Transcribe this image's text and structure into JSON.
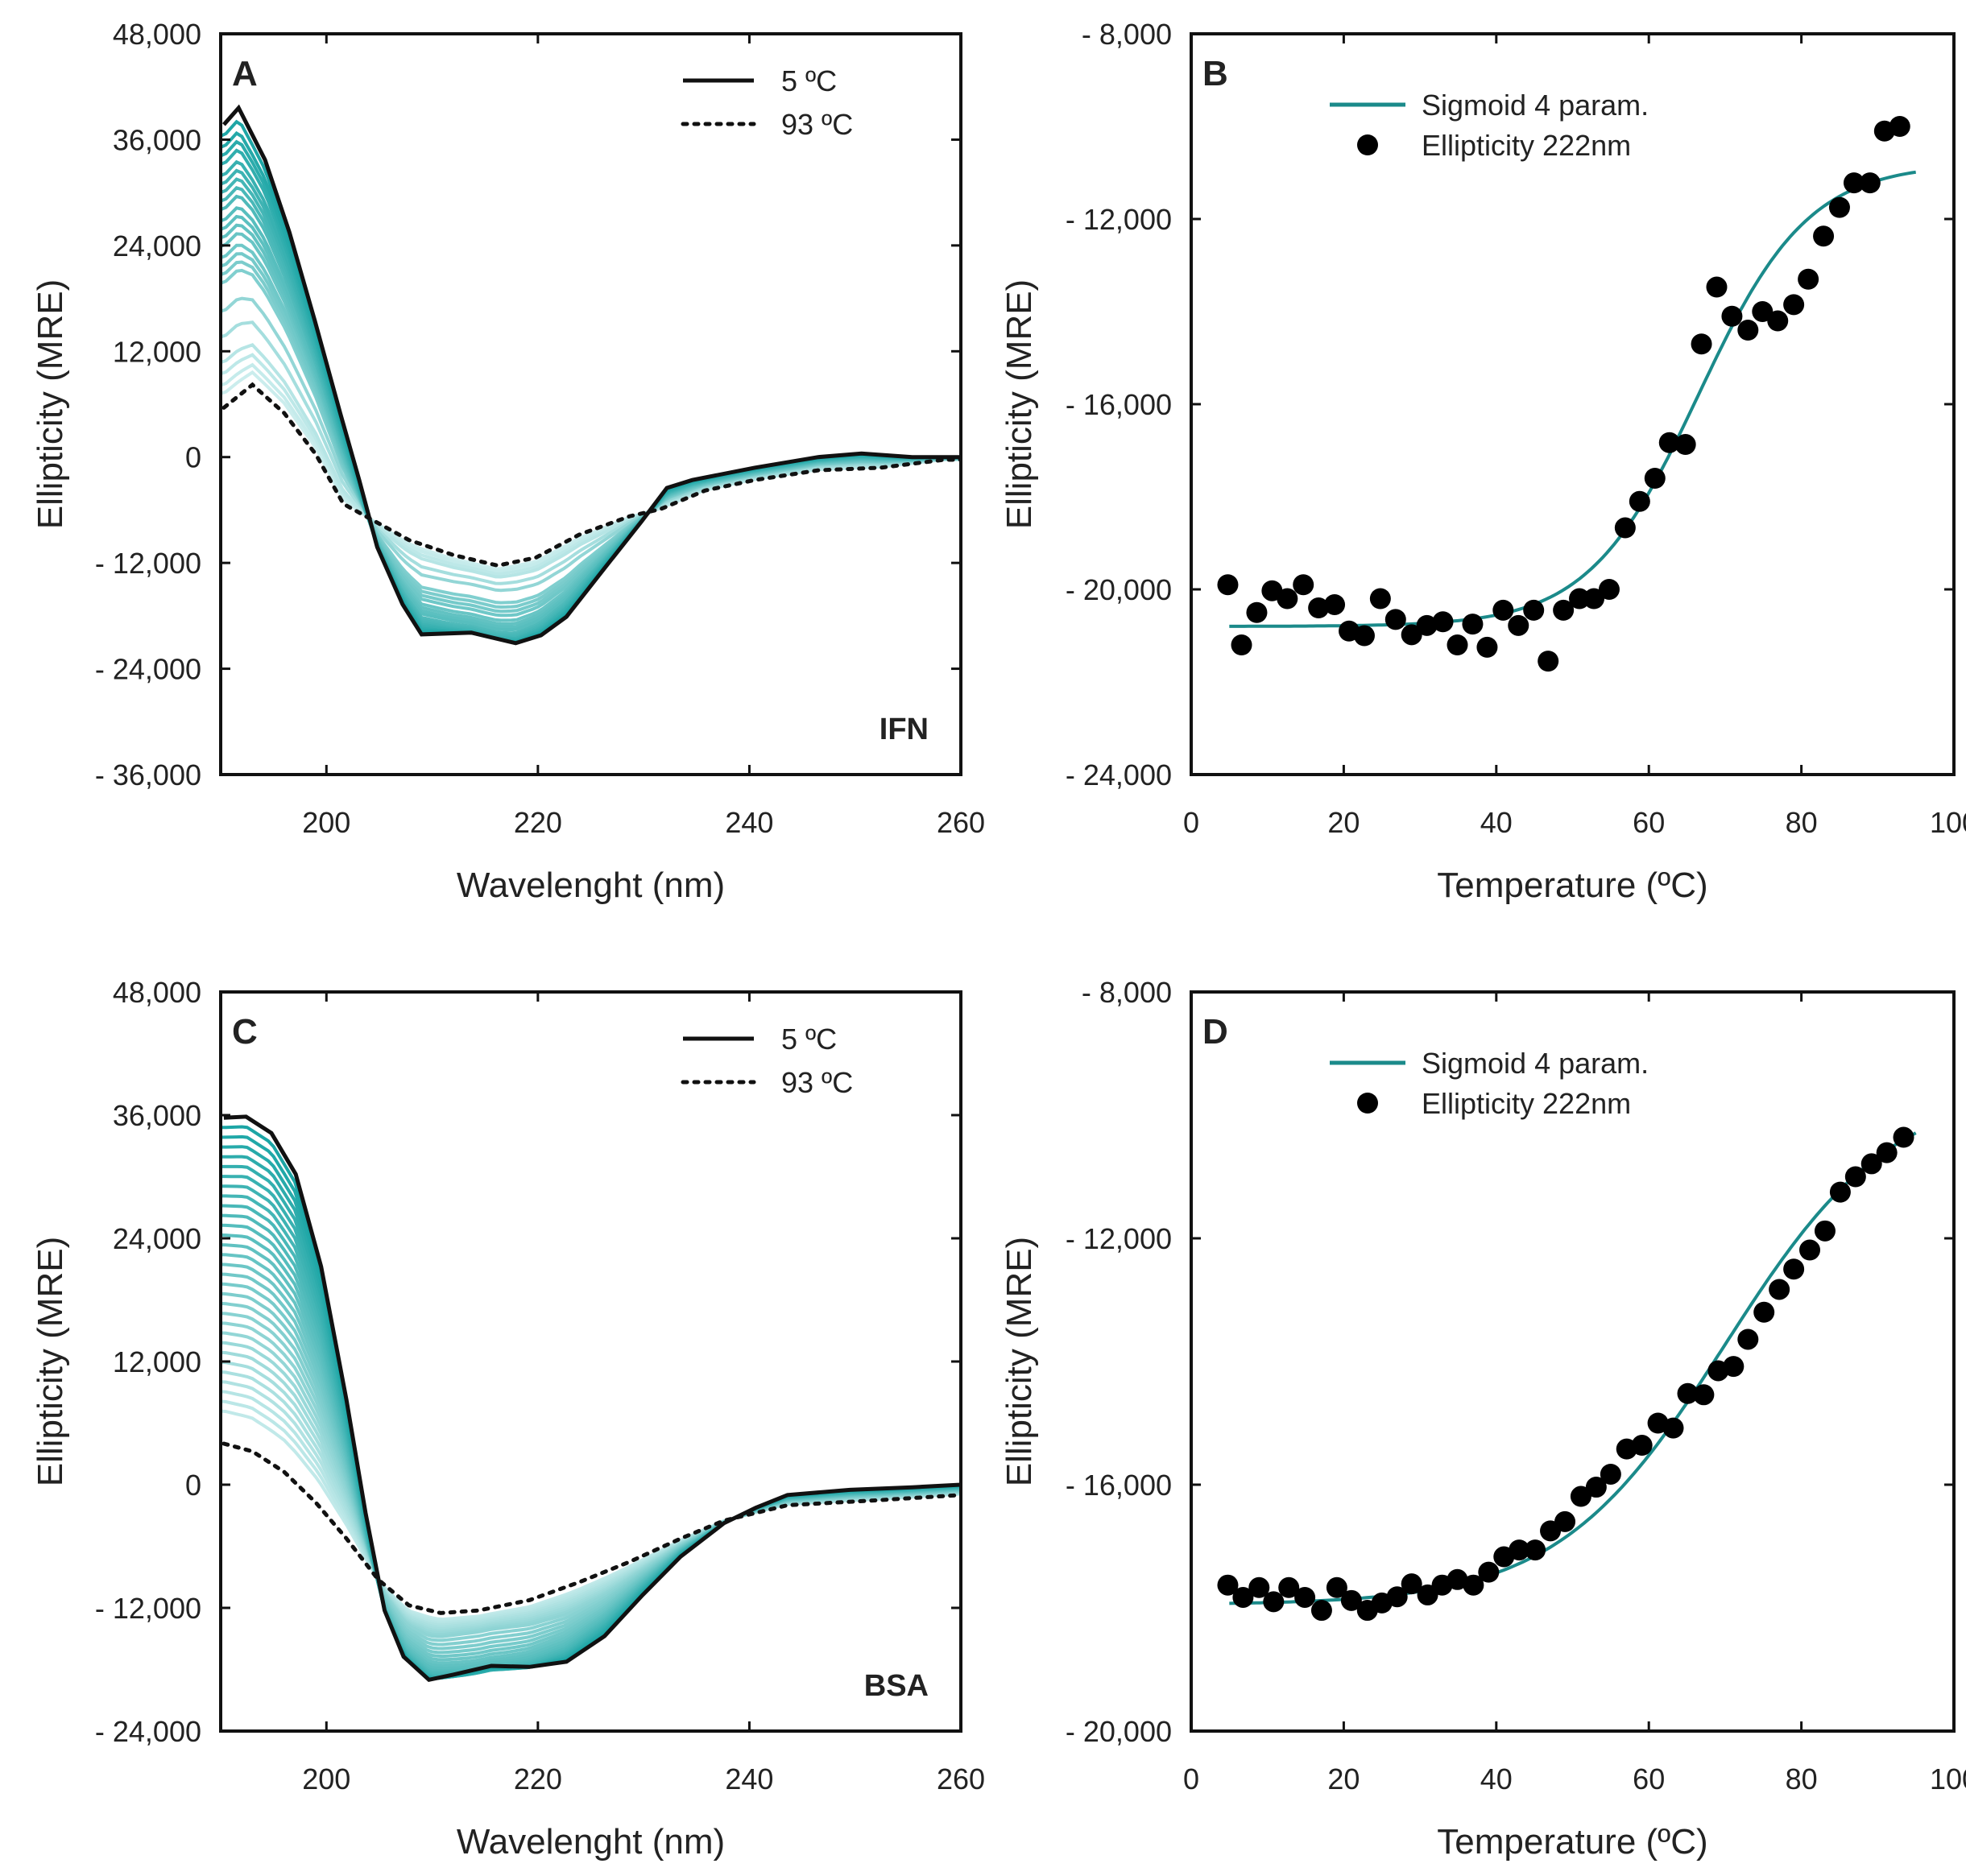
{
  "chart_data": [
    {
      "panel": "A",
      "type": "line",
      "sample_label": "IFN",
      "xlabel": "Wavelenght (nm)",
      "ylabel": "Ellipticity (MRE)",
      "xlim": [
        190,
        260
      ],
      "ylim": [
        -36000,
        48000
      ],
      "xticks": [
        200,
        220,
        240,
        260
      ],
      "xtick_labels": [
        "200",
        "220",
        "240",
        "260"
      ],
      "yticks": [
        48000,
        36000,
        24000,
        12000,
        0,
        -12000,
        -24000,
        -36000
      ],
      "ytick_labels": [
        "48,000",
        "36,000",
        "24,000",
        "12,000",
        "0",
        "- 12,000",
        "- 24,000",
        "- 36,000"
      ],
      "legend": [
        {
          "label": "5 ºC",
          "style": "solid"
        },
        {
          "label": "93 ºC",
          "style": "dotted"
        }
      ],
      "series": [
        {
          "name": "5 ºC",
          "color": "#111111",
          "style": "solid",
          "x": [
            190.3,
            191.7,
            194.2,
            196.5,
            198.9,
            201.3,
            203.1,
            204.8,
            207.2,
            209,
            213.7,
            217.9,
            220.3,
            222.7,
            226.3,
            229.8,
            232.2,
            234.6,
            240.5,
            246.5,
            250.6,
            255.4,
            260
          ],
          "y": [
            37700,
            39600,
            33700,
            25500,
            15500,
            5000,
            -2600,
            -10200,
            -16700,
            -20100,
            -19900,
            -21100,
            -20200,
            -18100,
            -12600,
            -7300,
            -3500,
            -2600,
            -1200,
            0,
            400,
            0,
            0
          ]
        },
        {
          "name": "93 ºC",
          "color": "#111111",
          "style": "dotted",
          "x": [
            190.3,
            193,
            196,
            199,
            201.6,
            203.7,
            207.8,
            212,
            216.2,
            219.8,
            223.9,
            228.7,
            231.6,
            235.8,
            240.5,
            246.5,
            252.4,
            258.4,
            260
          ],
          "y": [
            5600,
            8200,
            5000,
            300,
            -5300,
            -6700,
            -9400,
            -11100,
            -12300,
            -11400,
            -8800,
            -6700,
            -5900,
            -3800,
            -2600,
            -1500,
            -1200,
            -300,
            -300
          ]
        }
      ],
      "intermediate_fractions": [
        0.04,
        0.08,
        0.11,
        0.14,
        0.18,
        0.21,
        0.24,
        0.27,
        0.3,
        0.34,
        0.37,
        0.4,
        0.43,
        0.47,
        0.5,
        0.53,
        0.56,
        0.66,
        0.75,
        0.84,
        0.88,
        0.92,
        0.95
      ],
      "intermediate_color_dark": "#16a3a3",
      "intermediate_color_light": "#d4f1f1"
    },
    {
      "panel": "B",
      "type": "scatter",
      "xlabel": "Temperature (ºC)",
      "ylabel": "Ellipticity (MRE)",
      "xlim": [
        0,
        100
      ],
      "ylim": [
        -24000,
        -8000
      ],
      "xticks": [
        0,
        20,
        40,
        60,
        80,
        100
      ],
      "xtick_labels": [
        "0",
        "20",
        "40",
        "60",
        "80",
        "100"
      ],
      "yticks": [
        -8000,
        -12000,
        -16000,
        -20000,
        -24000
      ],
      "ytick_labels": [
        "- 8,000",
        "- 12,000",
        "- 16,000",
        "- 20,000",
        "- 24,000"
      ],
      "legend": [
        {
          "label": "Sigmoid 4 param.",
          "style": "line"
        },
        {
          "label": "Ellipticity 222nm",
          "style": "marker"
        }
      ],
      "fit_color": "#1b8a8a",
      "fit": {
        "bottom": -20800,
        "top": -10800,
        "tm": 66.5,
        "slope": 7.2,
        "xrange": [
          5,
          95
        ]
      },
      "points": {
        "x": [
          4.8,
          6.6,
          8.6,
          10.6,
          12.6,
          14.7,
          16.7,
          18.8,
          20.7,
          22.7,
          24.8,
          26.8,
          28.9,
          30.9,
          33,
          34.9,
          36.9,
          38.8,
          40.9,
          42.9,
          44.9,
          46.8,
          48.8,
          50.9,
          52.8,
          54.8,
          56.9,
          58.8,
          60.8,
          62.7,
          64.8,
          66.9,
          68.9,
          70.9,
          73,
          74.9,
          76.9,
          79,
          80.9,
          82.9,
          85,
          86.9,
          89,
          90.9,
          92.9
        ],
        "y": [
          -19900,
          -21200,
          -20500,
          -20030,
          -20200,
          -19900,
          -20400,
          -20330,
          -20900,
          -21000,
          -20200,
          -20650,
          -20980,
          -20780,
          -20700,
          -21200,
          -20750,
          -21250,
          -20450,
          -20780,
          -20450,
          -21550,
          -20450,
          -20200,
          -20200,
          -20000,
          -18670,
          -18100,
          -17600,
          -16830,
          -16870,
          -14700,
          -13470,
          -14100,
          -14400,
          -14000,
          -14200,
          -13850,
          -13300,
          -12370,
          -11750,
          -11220,
          -11220,
          -10100,
          -10000
        ]
      }
    },
    {
      "panel": "C",
      "type": "line",
      "sample_label": "BSA",
      "xlabel": "Wavelenght (nm)",
      "ylabel": "Ellipticity (MRE)",
      "xlim": [
        190,
        260
      ],
      "ylim": [
        -24000,
        48000
      ],
      "xticks": [
        200,
        220,
        240,
        260
      ],
      "xtick_labels": [
        "200",
        "220",
        "240",
        "260"
      ],
      "yticks": [
        48000,
        36000,
        24000,
        12000,
        0,
        -12000,
        -24000
      ],
      "ytick_labels": [
        "48,000",
        "36,000",
        "24,000",
        "12,000",
        "0",
        "- 12,000",
        "- 24,000"
      ],
      "legend": [
        {
          "label": "5 ºC",
          "style": "solid"
        },
        {
          "label": "93 ºC",
          "style": "dotted"
        }
      ],
      "series": [
        {
          "name": "5 ºC",
          "color": "#111111",
          "style": "solid",
          "x": [
            190.3,
            192.4,
            194.8,
            197.1,
            199.5,
            201.9,
            203.7,
            205.5,
            207.3,
            209.7,
            212,
            215.6,
            219.2,
            222.7,
            226.3,
            229.9,
            233.5,
            237.6,
            240.6,
            243.6,
            249.5,
            255.4,
            260
          ],
          "y": [
            35750,
            35850,
            34250,
            30250,
            21250,
            8250,
            -2750,
            -12250,
            -16750,
            -19000,
            -18500,
            -17650,
            -17750,
            -17250,
            -14750,
            -10750,
            -7000,
            -3750,
            -2250,
            -1000,
            -500,
            -250,
            0
          ]
        },
        {
          "name": "93 ºC",
          "color": "#111111",
          "style": "dotted",
          "x": [
            190.3,
            193,
            196,
            199,
            201.9,
            204.9,
            207.8,
            210.8,
            214.4,
            219.2,
            223.9,
            228.7,
            233.5,
            237.6,
            243.6,
            252.4,
            260
          ],
          "y": [
            4000,
            3250,
            1250,
            -1750,
            -5250,
            -9250,
            -11750,
            -12500,
            -12250,
            -11250,
            -9500,
            -7500,
            -5250,
            -3500,
            -2000,
            -1500,
            -1000
          ]
        }
      ],
      "intermediate_fractions": [
        0.03,
        0.06,
        0.09,
        0.12,
        0.15,
        0.18,
        0.21,
        0.24,
        0.27,
        0.3,
        0.33,
        0.36,
        0.39,
        0.42,
        0.45,
        0.48,
        0.51,
        0.54,
        0.57,
        0.6,
        0.63,
        0.66,
        0.69,
        0.72,
        0.75,
        0.78,
        0.81,
        0.84,
        0.87,
        0.9
      ],
      "intermediate_color_dark": "#16a3a3",
      "intermediate_color_light": "#d4f1f1"
    },
    {
      "panel": "D",
      "type": "scatter",
      "xlabel": "Temperature (ºC)",
      "ylabel": "Ellipticity (MRE)",
      "xlim": [
        0,
        100
      ],
      "ylim": [
        -20000,
        -8000
      ],
      "xticks": [
        0,
        20,
        40,
        60,
        80,
        100
      ],
      "xtick_labels": [
        "0",
        "20",
        "40",
        "60",
        "80",
        "100"
      ],
      "yticks": [
        -8000,
        -12000,
        -16000,
        -20000
      ],
      "ytick_labels": [
        "- 8,000",
        "- 12,000",
        "- 16,000",
        "- 20,000"
      ],
      "legend": [
        {
          "label": "Sigmoid 4 param.",
          "style": "line"
        },
        {
          "label": "Ellipticity 222nm",
          "style": "marker"
        }
      ],
      "fit_color": "#1b8a8a",
      "fit": {
        "bottom": -17950,
        "top": -9500,
        "tm": 70,
        "slope": 11,
        "xrange": [
          5,
          95
        ]
      },
      "points": {
        "x": [
          4.8,
          6.8,
          8.9,
          10.8,
          12.8,
          14.9,
          17.1,
          19.1,
          21,
          23.1,
          25,
          27,
          28.9,
          31,
          32.9,
          34.9,
          37,
          39,
          41,
          43,
          45.1,
          47.1,
          49,
          51.1,
          53.1,
          55,
          57.1,
          59.1,
          61.2,
          63.2,
          65.1,
          67.2,
          69.1,
          71.1,
          73,
          75.1,
          77.1,
          79,
          81.1,
          83.1,
          85.1,
          87.1,
          89.2,
          91.2,
          93.4
        ],
        "y": [
          -17630,
          -17830,
          -17670,
          -17900,
          -17670,
          -17830,
          -18040,
          -17670,
          -17880,
          -18040,
          -17920,
          -17820,
          -17610,
          -17790,
          -17630,
          -17540,
          -17630,
          -17420,
          -17170,
          -17060,
          -17060,
          -16750,
          -16600,
          -16190,
          -16040,
          -15830,
          -15420,
          -15360,
          -15000,
          -15080,
          -14520,
          -14540,
          -14150,
          -14080,
          -13640,
          -13200,
          -12830,
          -12500,
          -12190,
          -11880,
          -11250,
          -11000,
          -10790,
          -10610,
          -10360
        ]
      }
    }
  ]
}
